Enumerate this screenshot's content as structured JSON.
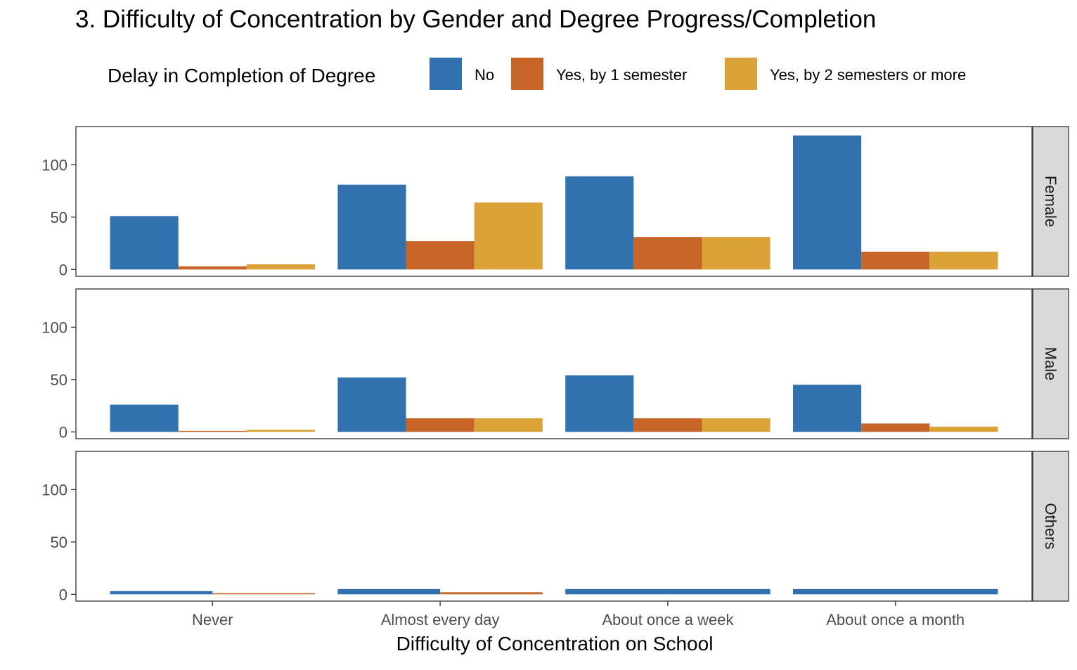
{
  "chart_data": {
    "type": "bar",
    "title": "3. Difficulty of Concentration by Gender and Degree Progress/Completion",
    "xlabel": "Difficulty of Concentration on School",
    "ylabel": "",
    "ylim": [
      0,
      130
    ],
    "yticks": [
      0,
      50,
      100
    ],
    "grid": false,
    "legend": {
      "title": "Delay in Completion of Degree",
      "position": "top"
    },
    "categories": [
      "Never",
      "Almost every day",
      "About once a week",
      "About once a month"
    ],
    "series": [
      {
        "name": "No",
        "color": "#3071AE"
      },
      {
        "name": "Yes, by 1 semester",
        "color": "#C76428"
      },
      {
        "name": "Yes, by 2 semesters or more",
        "color": "#DAA237"
      }
    ],
    "facets": [
      {
        "label": "Female",
        "values": [
          [
            51,
            3,
            5
          ],
          [
            81,
            27,
            64
          ],
          [
            89,
            31,
            31
          ],
          [
            128,
            17,
            17
          ]
        ]
      },
      {
        "label": "Male",
        "values": [
          [
            26,
            1,
            2
          ],
          [
            52,
            13,
            13
          ],
          [
            54,
            13,
            13
          ],
          [
            45,
            8,
            5
          ]
        ]
      },
      {
        "label": "Others",
        "values": [
          [
            3,
            1
          ],
          [
            5,
            2
          ],
          [
            5
          ],
          [
            5
          ]
        ]
      }
    ]
  }
}
